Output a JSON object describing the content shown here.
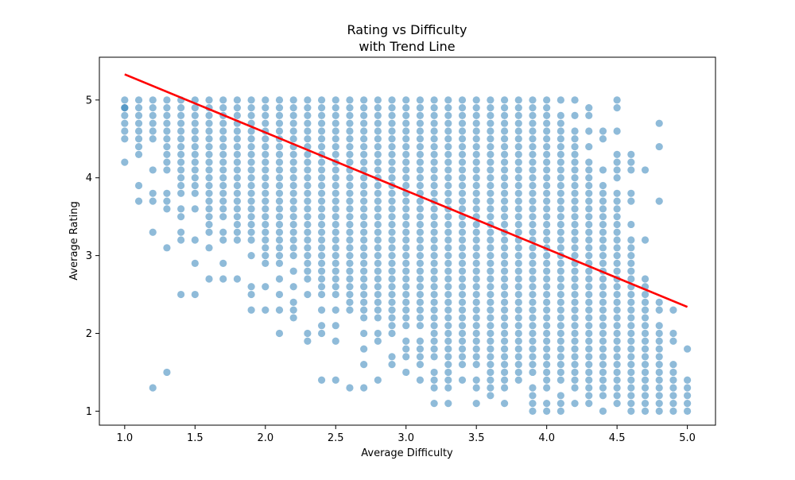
{
  "chart_data": {
    "type": "scatter",
    "title": "Rating vs Difficulty",
    "subtitle": "with Trend Line",
    "xlabel": "Average Difficulty",
    "ylabel": "Average Rating",
    "xlim": [
      0.82,
      5.2
    ],
    "ylim": [
      0.82,
      5.55
    ],
    "xticks": [
      1.0,
      1.5,
      2.0,
      2.5,
      3.0,
      3.5,
      4.0,
      4.5,
      5.0
    ],
    "xtick_labels": [
      "1.0",
      "1.5",
      "2.0",
      "2.5",
      "3.0",
      "3.5",
      "4.0",
      "4.5",
      "5.0"
    ],
    "yticks": [
      1,
      2,
      3,
      4,
      5
    ],
    "ytick_labels": [
      "1",
      "2",
      "3",
      "4",
      "5"
    ],
    "grid": false,
    "colors": {
      "points": "#1f77b4",
      "trend": "#ff0000"
    },
    "point_alpha": 0.5,
    "trend_line": {
      "x": [
        1.0,
        5.0
      ],
      "y": [
        5.33,
        2.34
      ]
    },
    "columns": [
      {
        "x": 1.0,
        "ranges": [
          [
            4.7,
            5.0
          ]
        ],
        "extra": [
          4.9,
          4.6,
          4.5,
          4.2
        ]
      },
      {
        "x": 1.1,
        "ranges": [
          [
            4.5,
            5.0
          ]
        ],
        "extra": [
          4.4,
          4.3,
          3.9,
          3.7
        ]
      },
      {
        "x": 1.2,
        "ranges": [
          [
            4.6,
            5.0
          ]
        ],
        "extra": [
          4.5,
          4.1,
          3.8,
          3.7,
          3.3,
          1.3
        ]
      },
      {
        "x": 1.3,
        "ranges": [
          [
            4.1,
            5.0
          ]
        ],
        "extra": [
          3.8,
          3.7,
          3.6,
          3.1,
          1.5
        ]
      },
      {
        "x": 1.4,
        "ranges": [
          [
            3.8,
            5.0
          ]
        ],
        "extra": [
          3.6,
          3.5,
          3.3,
          3.2,
          2.5
        ]
      },
      {
        "x": 1.5,
        "ranges": [
          [
            3.8,
            5.0
          ]
        ],
        "extra": [
          3.6,
          3.2,
          2.9,
          2.5
        ]
      },
      {
        "x": 1.6,
        "ranges": [
          [
            3.5,
            5.0
          ]
        ],
        "extra": [
          3.4,
          3.3,
          3.1,
          2.7
        ]
      },
      {
        "x": 1.7,
        "ranges": [
          [
            3.5,
            5.0
          ]
        ],
        "extra": [
          3.3,
          3.2,
          2.9,
          2.7
        ]
      },
      {
        "x": 1.8,
        "ranges": [
          [
            3.4,
            5.0
          ]
        ],
        "extra": [
          3.3,
          3.2,
          2.7
        ]
      },
      {
        "x": 1.9,
        "ranges": [
          [
            3.2,
            5.0
          ]
        ],
        "extra": [
          3.0,
          2.6,
          2.5,
          2.3
        ]
      },
      {
        "x": 2.0,
        "ranges": [
          [
            3.1,
            5.0
          ]
        ],
        "extra": [
          3.0,
          2.9,
          2.6,
          2.3
        ]
      },
      {
        "x": 2.1,
        "ranges": [
          [
            3.0,
            5.0
          ]
        ],
        "extra": [
          2.9,
          2.7,
          2.5,
          2.3,
          2.0
        ]
      },
      {
        "x": 2.2,
        "ranges": [
          [
            3.0,
            5.0
          ]
        ],
        "extra": [
          2.8,
          2.6,
          2.4,
          2.3,
          2.2
        ]
      },
      {
        "x": 2.3,
        "ranges": [
          [
            2.8,
            5.0
          ]
        ],
        "extra": [
          2.7,
          2.5,
          2.0,
          1.9
        ]
      },
      {
        "x": 2.4,
        "ranges": [
          [
            2.6,
            5.0
          ]
        ],
        "extra": [
          2.5,
          2.3,
          2.1,
          2.0,
          1.4
        ]
      },
      {
        "x": 2.5,
        "ranges": [
          [
            2.6,
            5.0
          ]
        ],
        "extra": [
          2.5,
          2.3,
          2.1,
          1.9,
          1.4
        ]
      },
      {
        "x": 2.6,
        "ranges": [
          [
            2.5,
            5.0
          ]
        ],
        "extra": [
          2.4,
          2.3,
          1.3
        ]
      },
      {
        "x": 2.7,
        "ranges": [
          [
            2.5,
            5.0
          ]
        ],
        "extra": [
          2.4,
          2.3,
          2.2,
          2.0,
          1.8,
          1.6,
          1.3
        ]
      },
      {
        "x": 2.8,
        "ranges": [
          [
            2.4,
            5.0
          ]
        ],
        "extra": [
          2.3,
          2.2,
          2.0,
          1.9,
          1.4
        ]
      },
      {
        "x": 2.9,
        "ranges": [
          [
            2.3,
            5.0
          ]
        ],
        "extra": [
          2.2,
          2.1,
          2.0,
          1.7,
          1.6
        ]
      },
      {
        "x": 3.0,
        "ranges": [
          [
            2.2,
            5.0
          ]
        ],
        "extra": [
          2.1,
          1.9,
          1.8,
          1.7,
          1.5
        ]
      },
      {
        "x": 3.1,
        "ranges": [
          [
            2.2,
            5.0
          ]
        ],
        "extra": [
          2.1,
          1.9,
          1.8,
          1.7,
          1.6,
          1.4
        ]
      },
      {
        "x": 3.2,
        "ranges": [
          [
            1.9,
            5.0
          ]
        ],
        "extra": [
          1.8,
          1.7,
          1.5,
          1.4,
          1.3,
          1.1
        ]
      },
      {
        "x": 3.3,
        "ranges": [
          [
            1.7,
            5.0
          ]
        ],
        "extra": [
          1.6,
          1.5,
          1.4,
          1.3,
          1.1
        ]
      },
      {
        "x": 3.4,
        "ranges": [
          [
            1.7,
            5.0
          ]
        ],
        "extra": [
          1.6,
          1.4
        ]
      },
      {
        "x": 3.5,
        "ranges": [
          [
            1.6,
            5.0
          ]
        ],
        "extra": [
          1.4,
          1.3,
          1.1
        ]
      },
      {
        "x": 3.6,
        "ranges": [
          [
            1.4,
            5.0
          ]
        ],
        "extra": [
          1.3,
          1.2
        ]
      },
      {
        "x": 3.7,
        "ranges": [
          [
            1.4,
            5.0
          ]
        ],
        "extra": [
          1.3,
          1.1
        ]
      },
      {
        "x": 3.8,
        "ranges": [
          [
            1.4,
            4.9
          ]
        ],
        "extra": [
          5.0
        ]
      },
      {
        "x": 3.9,
        "ranges": [
          [
            1.5,
            5.0
          ]
        ],
        "extra": [
          1.3,
          1.2,
          1.1,
          1.0
        ]
      },
      {
        "x": 4.0,
        "ranges": [
          [
            1.4,
            4.9
          ]
        ],
        "extra": [
          5.0,
          1.3,
          1.1,
          1.0
        ]
      },
      {
        "x": 4.1,
        "ranges": [
          [
            1.4,
            4.8
          ]
        ],
        "extra": [
          5.0,
          1.2,
          1.1,
          1.0
        ]
      },
      {
        "x": 4.2,
        "ranges": [
          [
            1.3,
            4.6
          ]
        ],
        "extra": [
          4.8,
          5.0,
          1.1
        ]
      },
      {
        "x": 4.3,
        "ranges": [
          [
            1.2,
            4.2
          ]
        ],
        "extra": [
          4.4,
          4.6,
          4.8,
          4.9,
          1.1
        ]
      },
      {
        "x": 4.4,
        "ranges": [
          [
            1.2,
            3.9
          ]
        ],
        "extra": [
          4.1,
          4.5,
          4.6,
          1.0
        ]
      },
      {
        "x": 4.5,
        "ranges": [
          [
            1.1,
            3.8
          ]
        ],
        "extra": [
          4.0,
          4.1,
          4.2,
          4.3,
          4.6,
          4.9,
          5.0
        ]
      },
      {
        "x": 4.6,
        "ranges": [
          [
            1.1,
            3.2
          ]
        ],
        "extra": [
          3.4,
          3.7,
          3.8,
          4.1,
          4.2,
          4.3,
          1.0
        ]
      },
      {
        "x": 4.7,
        "ranges": [
          [
            1.1,
            2.6
          ]
        ],
        "extra": [
          2.7,
          3.2,
          4.1,
          1.0
        ]
      },
      {
        "x": 4.8,
        "ranges": [
          [
            1.1,
            2.1
          ]
        ],
        "extra": [
          2.3,
          2.4,
          3.7,
          4.4,
          4.7,
          1.0
        ]
      },
      {
        "x": 4.9,
        "ranges": [
          [
            1.0,
            1.5
          ]
        ],
        "extra": [
          1.6,
          1.9,
          2.0,
          2.3
        ]
      },
      {
        "x": 5.0,
        "ranges": [
          [
            1.0,
            1.4
          ]
        ],
        "extra": [
          1.8
        ]
      }
    ]
  }
}
